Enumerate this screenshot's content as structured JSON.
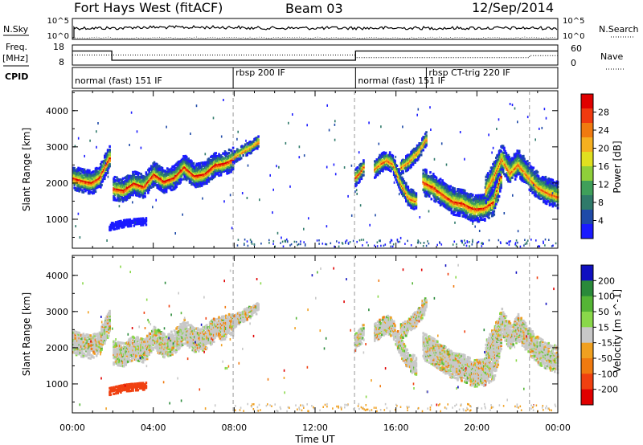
{
  "header": {
    "station": "Fort Hays West (fitACF)",
    "beam": "Beam 03",
    "date": "12/Sep/2014"
  },
  "top_panels": {
    "nsky_label": "N.Sky",
    "nsky_ticks": [
      "10^5",
      "10^0"
    ],
    "nsearch_label": "N.Search",
    "nsearch_ticks": [
      "10^5",
      "10^0"
    ],
    "freq_label": "Freq.",
    "freq_unit": "[MHz]",
    "freq_ticks": [
      "18",
      "8"
    ],
    "nave_label": "Nave",
    "nave_ticks": [
      "60",
      "0"
    ],
    "cpid_label": "CPID",
    "cpid_segments": [
      {
        "start": 0,
        "end": 7.95,
        "label": "normal (fast) 151 IF"
      },
      {
        "start": 7.95,
        "end": 14.0,
        "label": "rbsp 200 IF"
      },
      {
        "start": 14.0,
        "end": 17.5,
        "label": "normal (fast) 151 IF"
      },
      {
        "start": 17.5,
        "end": 22.6,
        "label": "rbsp CT-trig 220 IF"
      }
    ]
  },
  "chart_data": {
    "type": "heatmap",
    "x_axis": {
      "label": "Time UT",
      "range": [
        0,
        24
      ],
      "tick_labels": [
        "00:00",
        "04:00",
        "08:00",
        "12:00",
        "16:00",
        "20:00",
        "00:00"
      ]
    },
    "panels": [
      {
        "id": "power",
        "ylabel": "Slant Range [km]",
        "ylim": [
          200,
          4550
        ],
        "ytick_labels": [
          "1000",
          "2000",
          "3000",
          "4000"
        ],
        "colorbar": {
          "label": "Power [dB]",
          "ticks": [
            "28",
            "24",
            "20",
            "16",
            "12",
            "8",
            "4"
          ],
          "colors": [
            "#1a1aff",
            "#1f4aa8",
            "#2f7a6a",
            "#3f9f5a",
            "#8fcf3a",
            "#e0e020",
            "#f5b020",
            "#f07a10",
            "#f03a10",
            "#e00000"
          ]
        }
      },
      {
        "id": "velocity",
        "ylabel": "Slant Range [km]",
        "ylim": [
          200,
          4550
        ],
        "ytick_labels": [
          "1000",
          "2000",
          "3000",
          "4000"
        ],
        "colorbar": {
          "label": "Velocity [m s^-1]",
          "ticks": [
            "200",
            "100",
            "50",
            "15",
            "-15",
            "-50",
            "-100",
            "-200"
          ],
          "colors": [
            "#1010c0",
            "#2a8a3a",
            "#55b535",
            "#8ad84a",
            "#c8c8c8",
            "#f0a020",
            "#f07a10",
            "#f04010",
            "#e00000"
          ]
        }
      }
    ],
    "echo_bands": [
      {
        "t": [
          0.0,
          0.4,
          0.9,
          1.3,
          1.6,
          1.85
        ],
        "r": [
          2150,
          2080,
          2020,
          2150,
          2500,
          2750
        ],
        "width": 330,
        "kind": "iono"
      },
      {
        "t": [
          2.0,
          2.5,
          3.0,
          3.5,
          4.0,
          4.5,
          5.0,
          5.5,
          6.0,
          6.5,
          7.0,
          7.5,
          7.9
        ],
        "r": [
          1850,
          1800,
          2000,
          1900,
          2250,
          2050,
          2150,
          2450,
          2200,
          2250,
          2500,
          2550,
          2650
        ],
        "width": 320,
        "kind": "iono"
      },
      {
        "t": [
          7.9,
          8.3,
          8.8,
          9.2
        ],
        "r": [
          2700,
          2850,
          3000,
          3150
        ],
        "width": 170,
        "kind": "iono"
      },
      {
        "t": [
          13.95,
          14.2,
          14.4
        ],
        "r": [
          2150,
          2300,
          2500
        ],
        "width": 240,
        "kind": "iono"
      },
      {
        "t": [
          14.9,
          15.2,
          15.5,
          15.8,
          16.2,
          16.6,
          17.0
        ],
        "r": [
          2400,
          2550,
          2650,
          2550,
          2000,
          1600,
          1500
        ],
        "width": 260,
        "kind": "iono"
      },
      {
        "t": [
          16.2,
          16.6,
          17.1,
          17.5
        ],
        "r": [
          2450,
          2600,
          2900,
          3250
        ],
        "width": 220,
        "kind": "iono"
      },
      {
        "t": [
          17.3,
          17.8,
          18.3,
          18.8,
          19.3,
          19.8,
          20.3,
          20.8,
          21.2
        ],
        "r": [
          2050,
          1900,
          1700,
          1500,
          1450,
          1300,
          1320,
          1500,
          2300
        ],
        "width": 380,
        "kind": "iono"
      },
      {
        "t": [
          20.4,
          20.8,
          21.2,
          21.6,
          22.0,
          22.5,
          23.0,
          23.5,
          24.0
        ],
        "r": [
          1800,
          2200,
          2700,
          2300,
          2550,
          2200,
          1900,
          1750,
          1650
        ],
        "width": 360,
        "kind": "iono"
      },
      {
        "t": [
          1.8,
          2.6,
          3.6
        ],
        "r": [
          800,
          900,
          950
        ],
        "width": 110,
        "kind": "gs"
      }
    ],
    "vertical_markers": [
      7.95,
      13.95,
      22.6
    ]
  }
}
